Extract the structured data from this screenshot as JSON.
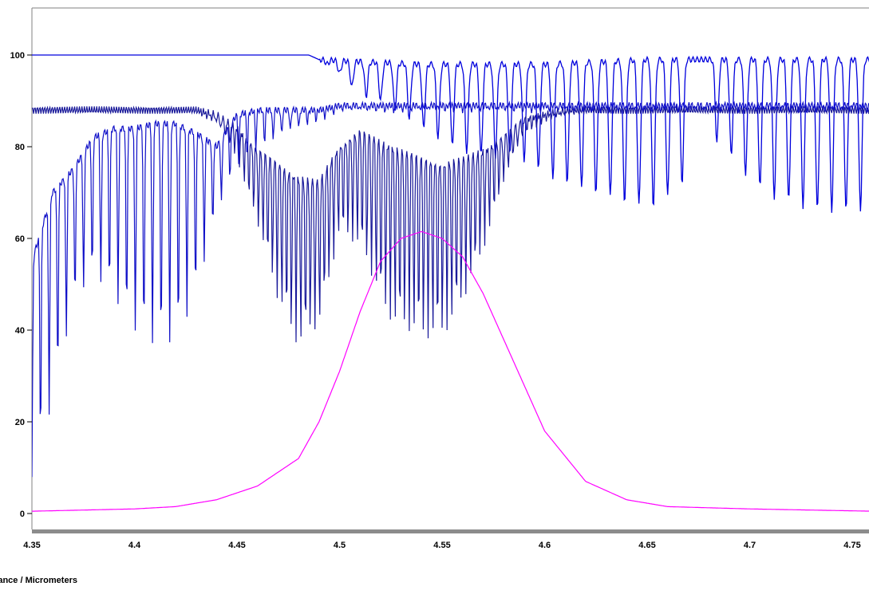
{
  "chart_data": {
    "type": "line",
    "xlabel": "ttance / Micrometers",
    "ylabel": "",
    "xlim": [
      4.35,
      4.76
    ],
    "ylim": [
      -5,
      110
    ],
    "x_ticks": [
      4.35,
      4.4,
      4.45,
      4.5,
      4.55,
      4.6,
      4.65,
      4.7,
      4.75
    ],
    "x_tick_labels": [
      "4.35",
      "4.4",
      "4.45",
      "4.5",
      "4.55",
      "4.6",
      "4.65",
      "4.7",
      "4.75"
    ],
    "y_ticks": [
      0,
      20,
      40,
      60,
      80,
      100
    ],
    "y_tick_labels": [
      "0",
      "20",
      "40",
      "60",
      "80",
      "100"
    ],
    "grid": false,
    "legend": "none",
    "colors": {
      "transmittance_a": "#0000dd",
      "transmittance_b": "#1a1a9a",
      "transmittance_c": "#1010c8",
      "filter": "#ff00ff"
    },
    "series": [
      {
        "key": "transmittance_a",
        "description": "near-unity trace with line absorptions starting ~4.49 um",
        "x": [
          4.35,
          4.485,
          4.49,
          4.54,
          4.6,
          4.65,
          4.7,
          4.76
        ],
        "y": [
          100,
          100,
          99,
          98,
          98,
          99,
          99,
          99
        ],
        "dips": [
          4.494,
          4.5,
          4.506,
          4.513,
          4.52,
          4.527,
          4.534,
          4.541,
          4.548,
          4.555,
          4.562,
          4.569,
          4.576,
          4.583,
          4.59,
          4.597,
          4.604,
          4.611,
          4.618,
          4.625,
          4.632,
          4.639,
          4.646,
          4.653,
          4.66,
          4.667,
          4.684,
          4.691,
          4.698,
          4.705,
          4.712,
          4.719,
          4.726,
          4.733,
          4.74,
          4.747,
          4.754
        ],
        "dip_min": [
          98,
          96,
          93,
          91,
          90,
          88,
          86,
          84,
          82,
          80,
          79,
          78,
          78,
          78,
          77,
          75,
          73,
          72,
          71,
          70,
          69,
          68,
          67,
          67,
          69,
          72,
          81,
          78,
          74,
          71,
          69,
          68,
          67,
          66,
          66,
          66,
          66
        ]
      },
      {
        "key": "transmittance_b",
        "description": "dense doublet absorption bands",
        "x": [
          4.35,
          4.43,
          4.44,
          4.45,
          4.46,
          4.47,
          4.48,
          4.49,
          4.5,
          4.51,
          4.52,
          4.53,
          4.54,
          4.55,
          4.56,
          4.57,
          4.58,
          4.59,
          4.6,
          4.61,
          4.62,
          4.65,
          4.7,
          4.76
        ],
        "y_upper": [
          88,
          88,
          87,
          84,
          79,
          76,
          73,
          72,
          80,
          83,
          81,
          79,
          77,
          76,
          77,
          79,
          82,
          86,
          87,
          88,
          88,
          88,
          88,
          88
        ],
        "y_lower": [
          88,
          88,
          85,
          78,
          63,
          46,
          37,
          40,
          62,
          58,
          46,
          40,
          38,
          39,
          45,
          58,
          72,
          83,
          86,
          87,
          88,
          88,
          88,
          88
        ]
      },
      {
        "key": "transmittance_c",
        "description": "widely spaced deep lines, strongest at short wavelength",
        "x": [
          4.35,
          4.36,
          4.37,
          4.38,
          4.39,
          4.4,
          4.41,
          4.42,
          4.43,
          4.44,
          4.45,
          4.46,
          4.47,
          4.48,
          4.49,
          4.5,
          4.55,
          4.6,
          4.65,
          4.7,
          4.76
        ],
        "y_upper": [
          55,
          70,
          75,
          82,
          84,
          84,
          85,
          85,
          83,
          80,
          87,
          88,
          88,
          88,
          88,
          89,
          89,
          89,
          89,
          89,
          89
        ],
        "y_lower": [
          8,
          25,
          45,
          52,
          48,
          40,
          36,
          38,
          48,
          65,
          76,
          80,
          82,
          84,
          86,
          88,
          88,
          88,
          88,
          88,
          88
        ]
      },
      {
        "key": "filter",
        "description": "filter response curve",
        "x": [
          4.35,
          4.4,
          4.42,
          4.44,
          4.46,
          4.48,
          4.49,
          4.5,
          4.51,
          4.52,
          4.53,
          4.54,
          4.55,
          4.56,
          4.57,
          4.58,
          4.59,
          4.6,
          4.62,
          4.64,
          4.66,
          4.7,
          4.76
        ],
        "y": [
          0.5,
          1,
          1.5,
          3,
          6,
          12,
          20,
          31,
          44,
          55,
          60,
          61.5,
          60,
          56,
          48,
          38,
          28,
          18,
          7,
          3,
          1.5,
          1,
          0.5
        ]
      }
    ]
  }
}
